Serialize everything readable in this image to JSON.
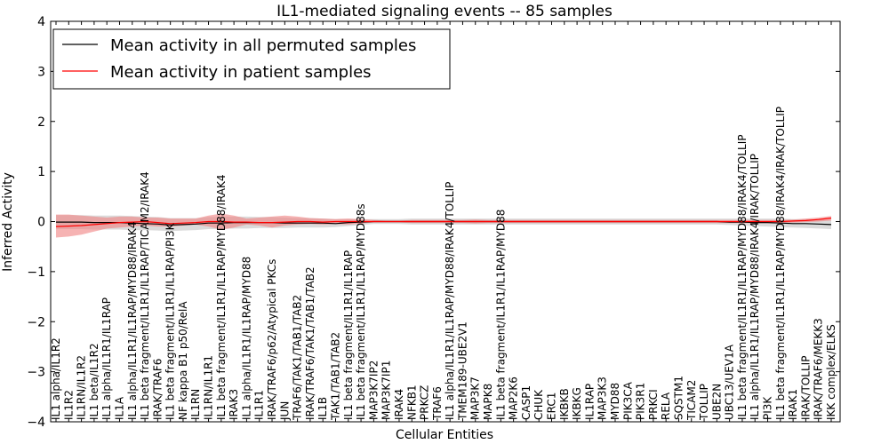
{
  "chart_data": {
    "type": "line",
    "title": "IL1-mediated signaling events -- 85 samples",
    "xlabel": "Cellular Entities",
    "ylabel": "Inferred Activity",
    "ylim": [
      -4,
      4
    ],
    "yticks": [
      -4,
      -3,
      -2,
      -1,
      0,
      1,
      2,
      3,
      4
    ],
    "ytick_labels": [
      "−4",
      "−3",
      "−2",
      "−1",
      "0",
      "1",
      "2",
      "3",
      "4"
    ],
    "grid": false,
    "legend_position": "top-left",
    "categories": [
      "IL1 alpha/IL1R2",
      "IL1R2",
      "IL1RN/IL1R2",
      "IL1 beta/IL1R2",
      "IL1 alpha/IL1R1/IL1RAP",
      "IL1A",
      "IL1 alpha/IL1R1/IL1RAP/MYD88/IRAK4",
      "IL1 beta fragment/IL1R1/IL1RAP/TICAM2/IRAK4",
      "IRAK/TRAF6",
      "IL1 beta fragment/IL1R1/IL1RAP/PI3K",
      "NF kappa B1 p50/RelA",
      "IL1RN",
      "IL1RN/IL1R1",
      "IL1 beta fragment/IL1R1/IL1RAP/MYD88/IRAK4",
      "IRAK3",
      "IL1 alpha/IL1R1/IL1RAP/MYD88",
      "IL1R1",
      "IRAK/TRAF6/p62/Atypical PKCs",
      "JUN",
      "TRAF6/TAK1/TAB1/TAB2",
      "IRAK/TRAF6/TAK1/TAB1/TAB2",
      "IL1B",
      "TAK1/TAB1/TAB2",
      "IL1 beta fragment/IL1R1/IL1RAP",
      "IL1 beta fragment/IL1R1/IL1RAP/MYD88s",
      "MAP3K7IP2",
      "MAP3K7IP1",
      "IRAK4",
      "NFKB1",
      "PRKCZ",
      "TRAF6",
      "IL1 alpha/IL1R1/IL1RAP/MYD88/IRAK4/TOLLIP",
      "TMEM189-UBE2V1",
      "MAP3K7",
      "MAPK8",
      "IL1 beta fragment/IL1R1/IL1RAP/MYD88",
      "MAP2K6",
      "CASP1",
      "CHUK",
      "ERC1",
      "IKBKB",
      "IKBKG",
      "IL1RAP",
      "MAP3K3",
      "MYD88",
      "PIK3CA",
      "PIK3R1",
      "PRKCI",
      "RELA",
      "SQSTM1",
      "TICAM2",
      "TOLLIP",
      "UBE2N",
      "UBC13/UEV1A",
      "IL1 beta fragment/IL1R1/IL1RAP/MYD88/IRAK4/TOLLIP",
      "IL1 alpha/IL1R1/IL1RAP/MYD88/IRAK4/IRAK/TOLLIP",
      "PI3K",
      "IL1 beta fragment/IL1R1/IL1RAP/MYD88/IRAK4/IRAK/TOLLIP",
      "IRAK1",
      "IRAK/TOLLIP",
      "IRAK/TRAF6/MEKK3",
      "IKK complex/ELKS"
    ],
    "series": [
      {
        "name": "Mean activity in all permuted samples",
        "color": "#000000",
        "values": [
          -0.01,
          -0.01,
          -0.01,
          -0.02,
          -0.02,
          -0.02,
          -0.03,
          -0.04,
          -0.05,
          -0.07,
          -0.06,
          -0.05,
          -0.03,
          -0.03,
          -0.02,
          -0.02,
          -0.02,
          -0.02,
          -0.03,
          -0.03,
          -0.03,
          -0.03,
          -0.04,
          -0.02,
          -0.01,
          0.0,
          0.0,
          0.0,
          0.0,
          0.0,
          0.0,
          0.0,
          0.0,
          0.0,
          0.0,
          0.0,
          0.0,
          0.0,
          0.0,
          0.0,
          0.0,
          0.0,
          0.0,
          0.0,
          0.0,
          0.0,
          0.0,
          0.0,
          0.0,
          0.0,
          0.0,
          0.0,
          0.0,
          -0.01,
          -0.01,
          -0.02,
          -0.02,
          -0.03,
          -0.04,
          -0.04,
          -0.05,
          -0.06
        ],
        "band_lower": [
          -0.15,
          -0.15,
          -0.15,
          -0.16,
          -0.16,
          -0.16,
          -0.17,
          -0.17,
          -0.18,
          -0.19,
          -0.18,
          -0.17,
          -0.15,
          -0.15,
          -0.14,
          -0.14,
          -0.13,
          -0.13,
          -0.13,
          -0.12,
          -0.12,
          -0.12,
          -0.11,
          -0.09,
          -0.07,
          -0.05,
          -0.05,
          -0.05,
          -0.06,
          -0.06,
          -0.06,
          -0.06,
          -0.06,
          -0.06,
          -0.06,
          -0.06,
          -0.06,
          -0.06,
          -0.06,
          -0.06,
          -0.06,
          -0.06,
          -0.06,
          -0.06,
          -0.06,
          -0.06,
          -0.06,
          -0.06,
          -0.06,
          -0.06,
          -0.06,
          -0.06,
          -0.06,
          -0.07,
          -0.08,
          -0.09,
          -0.1,
          -0.11,
          -0.12,
          -0.13,
          -0.14,
          -0.15
        ],
        "band_upper": [
          0.13,
          0.13,
          0.13,
          0.12,
          0.12,
          0.12,
          0.11,
          0.1,
          0.09,
          0.07,
          0.07,
          0.07,
          0.09,
          0.09,
          0.1,
          0.1,
          0.09,
          0.09,
          0.08,
          0.07,
          0.07,
          0.06,
          0.05,
          0.05,
          0.05,
          0.05,
          0.05,
          0.05,
          0.06,
          0.06,
          0.06,
          0.06,
          0.06,
          0.06,
          0.06,
          0.06,
          0.06,
          0.06,
          0.06,
          0.06,
          0.06,
          0.06,
          0.06,
          0.06,
          0.06,
          0.06,
          0.06,
          0.06,
          0.06,
          0.06,
          0.06,
          0.06,
          0.06,
          0.06,
          0.06,
          0.06,
          0.06,
          0.06,
          0.05,
          0.05,
          0.04,
          0.03
        ],
        "band_color": "#cccccc"
      },
      {
        "name": "Mean activity in patient samples",
        "color": "#ff0000",
        "values": [
          -0.1,
          -0.09,
          -0.08,
          -0.06,
          -0.04,
          -0.02,
          -0.01,
          0.0,
          -0.02,
          -0.04,
          -0.03,
          -0.02,
          0.0,
          0.0,
          -0.01,
          -0.01,
          -0.02,
          -0.02,
          -0.01,
          0.0,
          0.0,
          -0.01,
          0.0,
          0.0,
          0.0,
          0.0,
          0.0,
          0.0,
          0.0,
          0.0,
          0.0,
          0.0,
          0.0,
          0.0,
          0.0,
          0.0,
          0.0,
          0.0,
          0.0,
          0.0,
          0.0,
          0.0,
          0.0,
          0.0,
          0.0,
          0.0,
          0.0,
          0.0,
          0.0,
          0.0,
          0.0,
          0.0,
          0.0,
          0.0,
          0.0,
          0.0,
          0.0,
          0.0,
          0.01,
          0.02,
          0.04,
          0.07
        ],
        "band_lower": [
          -0.32,
          -0.3,
          -0.26,
          -0.2,
          -0.14,
          -0.12,
          -0.1,
          -0.08,
          -0.1,
          -0.1,
          -0.08,
          -0.06,
          -0.1,
          -0.16,
          -0.12,
          -0.06,
          -0.08,
          -0.12,
          -0.08,
          -0.06,
          -0.05,
          -0.06,
          -0.05,
          -0.06,
          -0.04,
          -0.02,
          -0.02,
          -0.02,
          -0.03,
          -0.03,
          -0.03,
          -0.03,
          -0.03,
          -0.04,
          -0.03,
          -0.03,
          -0.03,
          -0.03,
          -0.03,
          -0.03,
          -0.03,
          -0.03,
          -0.03,
          -0.03,
          -0.03,
          -0.03,
          -0.03,
          -0.03,
          -0.03,
          -0.03,
          -0.03,
          -0.03,
          -0.03,
          -0.03,
          -0.03,
          -0.03,
          -0.03,
          -0.03,
          -0.02,
          -0.01,
          0.0,
          0.02
        ],
        "band_upper": [
          0.14,
          0.14,
          0.12,
          0.1,
          0.08,
          0.1,
          0.1,
          0.08,
          0.08,
          0.06,
          0.06,
          0.06,
          0.12,
          0.16,
          0.12,
          0.06,
          0.08,
          0.1,
          0.12,
          0.1,
          0.07,
          0.06,
          0.05,
          0.06,
          0.05,
          0.03,
          0.02,
          0.02,
          0.03,
          0.03,
          0.03,
          0.03,
          0.03,
          0.04,
          0.03,
          0.03,
          0.03,
          0.03,
          0.03,
          0.03,
          0.03,
          0.03,
          0.03,
          0.03,
          0.03,
          0.03,
          0.03,
          0.03,
          0.03,
          0.03,
          0.03,
          0.03,
          0.03,
          0.03,
          0.03,
          0.03,
          0.03,
          0.03,
          0.04,
          0.06,
          0.08,
          0.11
        ],
        "band_color": "#f08080"
      }
    ]
  }
}
